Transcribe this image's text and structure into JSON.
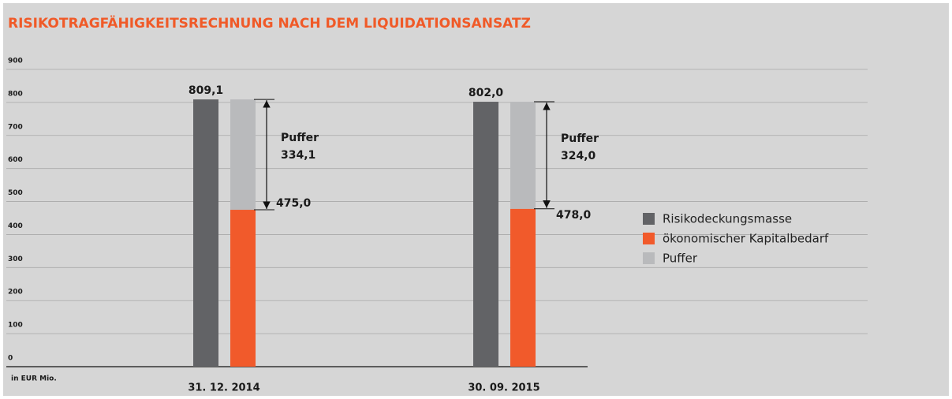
{
  "chart_data": {
    "type": "bar",
    "title": "RISIKOTRAGFÄHIGKEITSRECHNUNG NACH DEM LIQUIDATIONSANSATZ",
    "y_label": "in EUR Mio.",
    "categories": [
      "31. 12. 2014",
      "30. 09. 2015"
    ],
    "series": [
      {
        "name": "Risikodeckungsmasse",
        "color": "#626366",
        "values": [
          809.1,
          802.0
        ],
        "value_labels": [
          "809,1",
          "802,0"
        ]
      },
      {
        "name": "ökonomischer Kapitalbedarf",
        "color": "#f15a2b",
        "values": [
          475.0,
          478.0
        ],
        "value_labels": [
          "475,0",
          "478,0"
        ]
      },
      {
        "name": "Puffer",
        "color": "#b9babc",
        "values": [
          334.1,
          324.0
        ],
        "value_labels": [
          "334,1",
          "324,0"
        ]
      }
    ],
    "ylim": [
      0,
      900
    ],
    "yticks": [
      0,
      100,
      200,
      300,
      400,
      500,
      600,
      700,
      800,
      900
    ],
    "grid": true
  }
}
